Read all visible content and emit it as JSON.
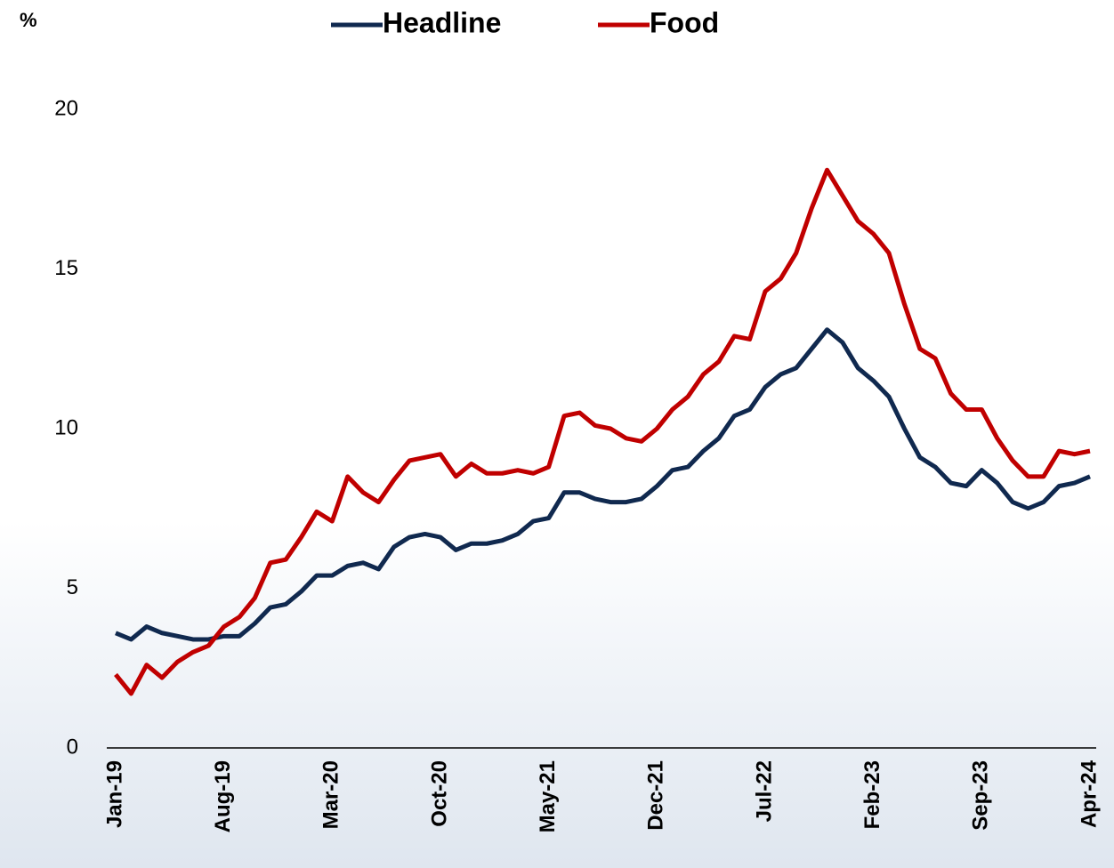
{
  "chart_data": {
    "type": "line",
    "y_label": "%",
    "categories": [
      "Jan-19",
      null,
      null,
      null,
      null,
      null,
      null,
      "Aug-19",
      null,
      null,
      null,
      null,
      null,
      null,
      "Mar-20",
      null,
      null,
      null,
      null,
      null,
      null,
      "Oct-20",
      null,
      null,
      null,
      null,
      null,
      null,
      "May-21",
      null,
      null,
      null,
      null,
      null,
      null,
      "Dec-21",
      null,
      null,
      null,
      null,
      null,
      null,
      "Jul-22",
      null,
      null,
      null,
      null,
      null,
      null,
      "Feb-23",
      null,
      null,
      null,
      null,
      null,
      null,
      "Sep-23",
      null,
      null,
      null,
      null,
      null,
      null,
      "Apr-24"
    ],
    "series": [
      {
        "name": "Headline",
        "color": "#10294f",
        "values": [
          3.6,
          3.4,
          3.8,
          3.6,
          3.5,
          3.4,
          3.4,
          3.5,
          3.5,
          3.9,
          4.4,
          4.5,
          4.9,
          5.4,
          5.4,
          5.7,
          5.8,
          5.6,
          6.3,
          6.6,
          6.7,
          6.6,
          6.2,
          6.4,
          6.4,
          6.5,
          6.7,
          7.1,
          7.2,
          8.0,
          8.0,
          7.8,
          7.7,
          7.7,
          7.8,
          8.2,
          8.7,
          8.8,
          9.3,
          9.7,
          10.4,
          10.6,
          11.3,
          11.7,
          11.9,
          12.5,
          13.1,
          12.7,
          11.9,
          11.5,
          11.0,
          10.0,
          9.1,
          8.8,
          8.3,
          8.2,
          8.7,
          8.3,
          7.7,
          7.5,
          7.7,
          8.2,
          8.3,
          8.5
        ]
      },
      {
        "name": "Food",
        "color": "#c00000",
        "values": [
          2.3,
          1.7,
          2.6,
          2.2,
          2.7,
          3.0,
          3.2,
          3.8,
          4.1,
          4.7,
          5.8,
          5.9,
          6.6,
          7.4,
          7.1,
          8.5,
          8.0,
          7.7,
          8.4,
          9.0,
          9.1,
          9.2,
          8.5,
          8.9,
          8.6,
          8.6,
          8.7,
          8.6,
          8.8,
          10.4,
          10.5,
          10.1,
          10.0,
          9.7,
          9.6,
          10.0,
          10.6,
          11.0,
          11.7,
          12.1,
          12.9,
          12.8,
          14.3,
          14.7,
          15.5,
          16.9,
          18.1,
          17.3,
          16.5,
          16.1,
          15.5,
          13.9,
          12.5,
          12.2,
          11.1,
          10.6,
          10.6,
          9.7,
          9.0,
          8.5,
          8.5,
          9.3,
          9.2,
          9.3
        ]
      }
    ],
    "ylim": [
      0,
      20
    ],
    "yticks": [
      0,
      5,
      10,
      15,
      20
    ],
    "grid": false
  }
}
